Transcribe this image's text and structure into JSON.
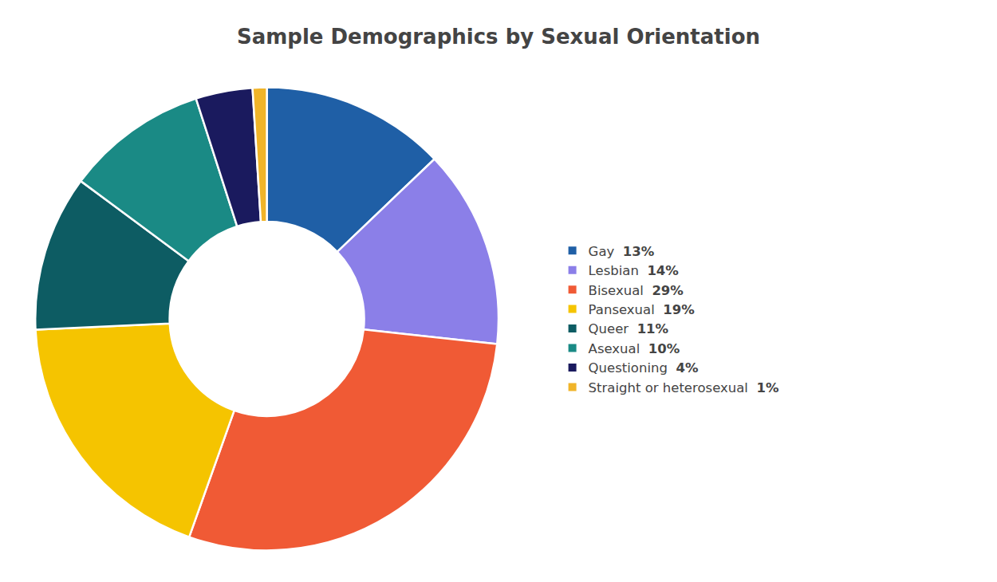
{
  "chart_data": {
    "type": "pie",
    "title": "Sample Demographics by Sexual Orientation",
    "categories": [
      "Gay",
      "Lesbian",
      "Bisexual",
      "Pansexual",
      "Queer",
      "Asexual",
      "Questioning",
      "Straight or heterosexual"
    ],
    "values": [
      13,
      14,
      29,
      19,
      11,
      10,
      4,
      1
    ],
    "value_labels": [
      "13%",
      "14%",
      "29%",
      "19%",
      "11%",
      "10%",
      "4%",
      "1%"
    ],
    "colors": [
      "#1f5fa6",
      "#8b7fe8",
      "#f05a35",
      "#f5c400",
      "#0d5c63",
      "#1a8a85",
      "#1a1a5e",
      "#f0b429"
    ],
    "legend": "right"
  }
}
